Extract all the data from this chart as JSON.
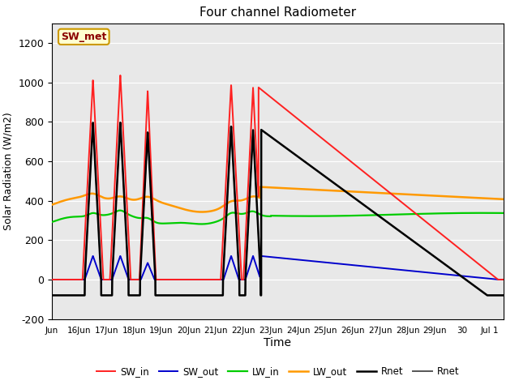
{
  "title": "Four channel Radiometer",
  "xlabel": "Time",
  "ylabel": "Solar Radiation (W/m2)",
  "ylim": [
    -200,
    1300
  ],
  "yticks": [
    -200,
    0,
    200,
    400,
    600,
    800,
    1000,
    1200
  ],
  "xtick_labels": [
    "Jun",
    "16Jun",
    "17Jun",
    "18Jun",
    "19Jun",
    "20Jun",
    "21Jun",
    "22Jun",
    "23Jun",
    "24Jun",
    "25Jun",
    "26Jun",
    "27Jun",
    "28Jun",
    "29Jun",
    "30",
    "Jul 1"
  ],
  "fig_facecolor": "#ffffff",
  "axes_facecolor": "#e8e8e8",
  "grid_color": "#ffffff",
  "annotation_text": "SW_met",
  "annotation_color": "#8b0000",
  "annotation_bg": "#ffffd0",
  "annotation_border": "#cc9900",
  "sw_in_color": "#ff2020",
  "sw_out_color": "#0000cc",
  "lw_in_color": "#00cc00",
  "lw_out_color": "#ff9900",
  "rnet_color": "#000000",
  "rnet2_color": "#555555"
}
